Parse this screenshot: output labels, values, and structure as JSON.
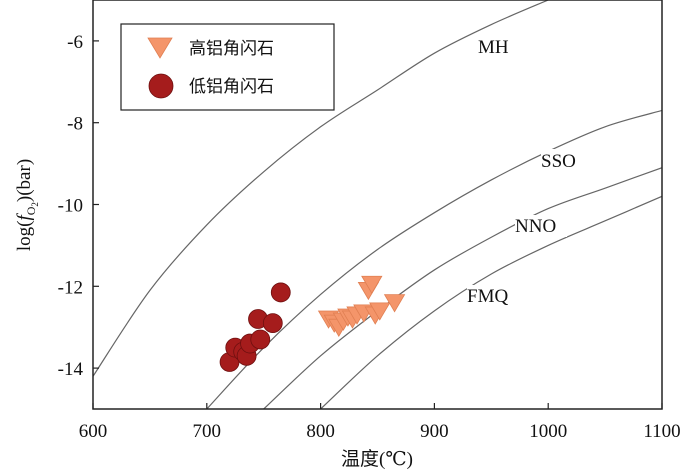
{
  "chart_data": {
    "type": "scatter",
    "xlabel_prefix": "温度(",
    "xlabel_unit": "℃",
    "xlabel_suffix": ")",
    "ylabel_prefix": "log(",
    "ylabel_f": "f",
    "ylabel_o": "O",
    "ylabel_2": "2",
    "ylabel_suffix": ")(bar)",
    "xlim": [
      600,
      1100
    ],
    "ylim": [
      -15,
      -5
    ],
    "xticks": [
      600,
      700,
      800,
      900,
      1000,
      1100
    ],
    "yticks": [
      -14,
      -12,
      -10,
      -8,
      -6
    ],
    "xtick_labels": [
      "600",
      "700",
      "800",
      "900",
      "1000",
      "1100"
    ],
    "ytick_labels": [
      "-14",
      "-12",
      "-10",
      "-8",
      "-6"
    ],
    "legend_position": "top-left",
    "series": [
      {
        "name": "高铝角闪石",
        "marker": "triangle-down",
        "color": "#f4956a",
        "points": [
          [
            807,
            -12.8
          ],
          [
            812,
            -12.9
          ],
          [
            816,
            -13.0
          ],
          [
            820,
            -12.85
          ],
          [
            824,
            -12.75
          ],
          [
            828,
            -12.8
          ],
          [
            832,
            -12.7
          ],
          [
            838,
            -12.65
          ],
          [
            842,
            -12.1
          ],
          [
            845,
            -11.95
          ],
          [
            848,
            -12.7
          ],
          [
            852,
            -12.6
          ],
          [
            865,
            -12.4
          ]
        ]
      },
      {
        "name": "低铝角闪石",
        "marker": "circle",
        "color": "#a51c1c",
        "points": [
          [
            720,
            -13.85
          ],
          [
            725,
            -13.5
          ],
          [
            732,
            -13.6
          ],
          [
            735,
            -13.7
          ],
          [
            738,
            -13.4
          ],
          [
            745,
            -12.8
          ],
          [
            747,
            -13.3
          ],
          [
            758,
            -12.9
          ],
          [
            765,
            -12.15
          ]
        ]
      }
    ],
    "buffers": [
      {
        "name": "MH",
        "points": [
          [
            600,
            -14.2
          ],
          [
            650,
            -12.1
          ],
          [
            700,
            -10.5
          ],
          [
            750,
            -9.2
          ],
          [
            800,
            -8.1
          ],
          [
            850,
            -7.2
          ],
          [
            900,
            -6.3
          ],
          [
            950,
            -5.6
          ],
          [
            1000,
            -5.0
          ]
        ]
      },
      {
        "name": "SSO",
        "points": [
          [
            700,
            -15.0
          ],
          [
            750,
            -13.5
          ],
          [
            800,
            -12.2
          ],
          [
            850,
            -11.1
          ],
          [
            900,
            -10.2
          ],
          [
            950,
            -9.4
          ],
          [
            1000,
            -8.7
          ],
          [
            1050,
            -8.1
          ],
          [
            1100,
            -7.7
          ]
        ]
      },
      {
        "name": "NNO",
        "points": [
          [
            750,
            -15.0
          ],
          [
            800,
            -13.7
          ],
          [
            850,
            -12.6
          ],
          [
            900,
            -11.6
          ],
          [
            950,
            -10.8
          ],
          [
            1000,
            -10.1
          ],
          [
            1050,
            -9.6
          ],
          [
            1100,
            -9.1
          ]
        ]
      },
      {
        "name": "FMQ",
        "points": [
          [
            800,
            -15.0
          ],
          [
            850,
            -13.7
          ],
          [
            900,
            -12.6
          ],
          [
            950,
            -11.7
          ],
          [
            1000,
            -11.0
          ],
          [
            1050,
            -10.4
          ],
          [
            1100,
            -9.8
          ]
        ]
      }
    ]
  }
}
